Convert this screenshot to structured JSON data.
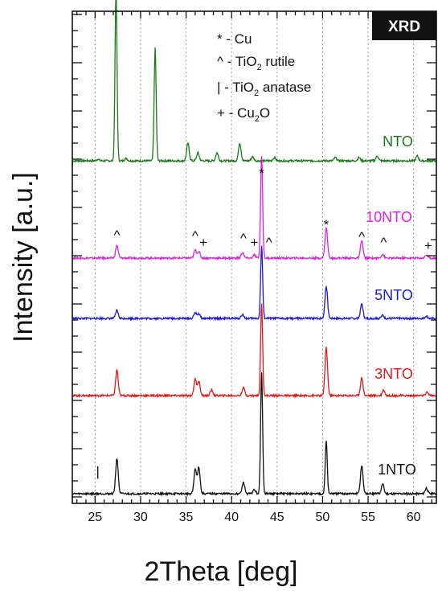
{
  "chart_data": {
    "type": "line",
    "title": "",
    "xlabel": "2Theta [deg]",
    "ylabel": "Intensity [a.u.]",
    "xlim": [
      22.5,
      62.5
    ],
    "x_ticks": [
      "25",
      "30",
      "35",
      "40",
      "45",
      "50",
      "55",
      "60"
    ],
    "grid": "vertical dotted",
    "badge": "XRD",
    "legend": [
      {
        "symbol": "*",
        "text": "- Cu",
        "sub": "",
        "tail": ""
      },
      {
        "symbol": "^",
        "text": "- TiO",
        "sub": "2",
        "tail": " rutile"
      },
      {
        "symbol": "|",
        "text": "- TiO",
        "sub": "2",
        "tail": " anatase"
      },
      {
        "symbol": "+",
        "text": "- Cu",
        "sub": "2",
        "tail": "O"
      }
    ],
    "series": [
      {
        "name": "NTO",
        "color": "#1a7a1a",
        "peaks": [
          [
            25.3,
            2
          ],
          [
            27.3,
            210
          ],
          [
            28.4,
            3
          ],
          [
            31.6,
            140
          ],
          [
            35.2,
            22
          ],
          [
            36.3,
            10
          ],
          [
            38.4,
            10
          ],
          [
            40.9,
            22
          ],
          [
            42.3,
            5
          ],
          [
            44.7,
            4
          ],
          [
            51.4,
            4
          ],
          [
            54.0,
            4
          ],
          [
            56.0,
            6
          ],
          [
            60.4,
            6
          ]
        ]
      },
      {
        "name": "10NTO",
        "color": "#e020e0",
        "peaks": [
          [
            27.4,
            16
          ],
          [
            36.0,
            10
          ],
          [
            36.4,
            8
          ],
          [
            41.2,
            7
          ],
          [
            42.5,
            4
          ],
          [
            43.3,
            128
          ],
          [
            50.4,
            38
          ],
          [
            54.3,
            22
          ],
          [
            56.6,
            5
          ],
          [
            61.4,
            4
          ]
        ]
      },
      {
        "name": "5NTO",
        "color": "#1a1ad0",
        "peaks": [
          [
            27.4,
            10
          ],
          [
            36.0,
            7
          ],
          [
            36.4,
            6
          ],
          [
            41.2,
            5
          ],
          [
            43.3,
            90
          ],
          [
            50.4,
            40
          ],
          [
            54.3,
            18
          ],
          [
            56.6,
            4
          ],
          [
            61.4,
            3
          ]
        ]
      },
      {
        "name": "3NTO",
        "color": "#e01818",
        "peaks": [
          [
            27.4,
            32
          ],
          [
            36.0,
            20
          ],
          [
            36.4,
            18
          ],
          [
            37.8,
            7
          ],
          [
            41.3,
            10
          ],
          [
            43.3,
            115
          ],
          [
            50.4,
            60
          ],
          [
            54.3,
            22
          ],
          [
            56.7,
            7
          ],
          [
            61.5,
            4
          ]
        ]
      },
      {
        "name": "1NTO",
        "color": "#111111",
        "peaks": [
          [
            27.4,
            44
          ],
          [
            36.0,
            30
          ],
          [
            36.4,
            33
          ],
          [
            41.3,
            14
          ],
          [
            42.5,
            5
          ],
          [
            43.3,
            150
          ],
          [
            50.4,
            66
          ],
          [
            54.3,
            35
          ],
          [
            56.6,
            12
          ],
          [
            61.4,
            7
          ]
        ]
      }
    ],
    "annotations": [
      {
        "text": "*",
        "x": 43.3
      },
      {
        "text": "^",
        "x": 27.4
      },
      {
        "text": "^",
        "x": 36.0
      },
      {
        "text": "+",
        "x": 36.9
      },
      {
        "text": "^",
        "x": 41.3
      },
      {
        "text": "+",
        "x": 42.5
      },
      {
        "text": "^",
        "x": 44.1
      },
      {
        "text": "*",
        "x": 50.4
      },
      {
        "text": "^",
        "x": 54.3
      },
      {
        "text": "^",
        "x": 56.7
      },
      {
        "text": "+",
        "x": 61.6
      },
      {
        "text": "|",
        "x": 25.3
      }
    ]
  }
}
